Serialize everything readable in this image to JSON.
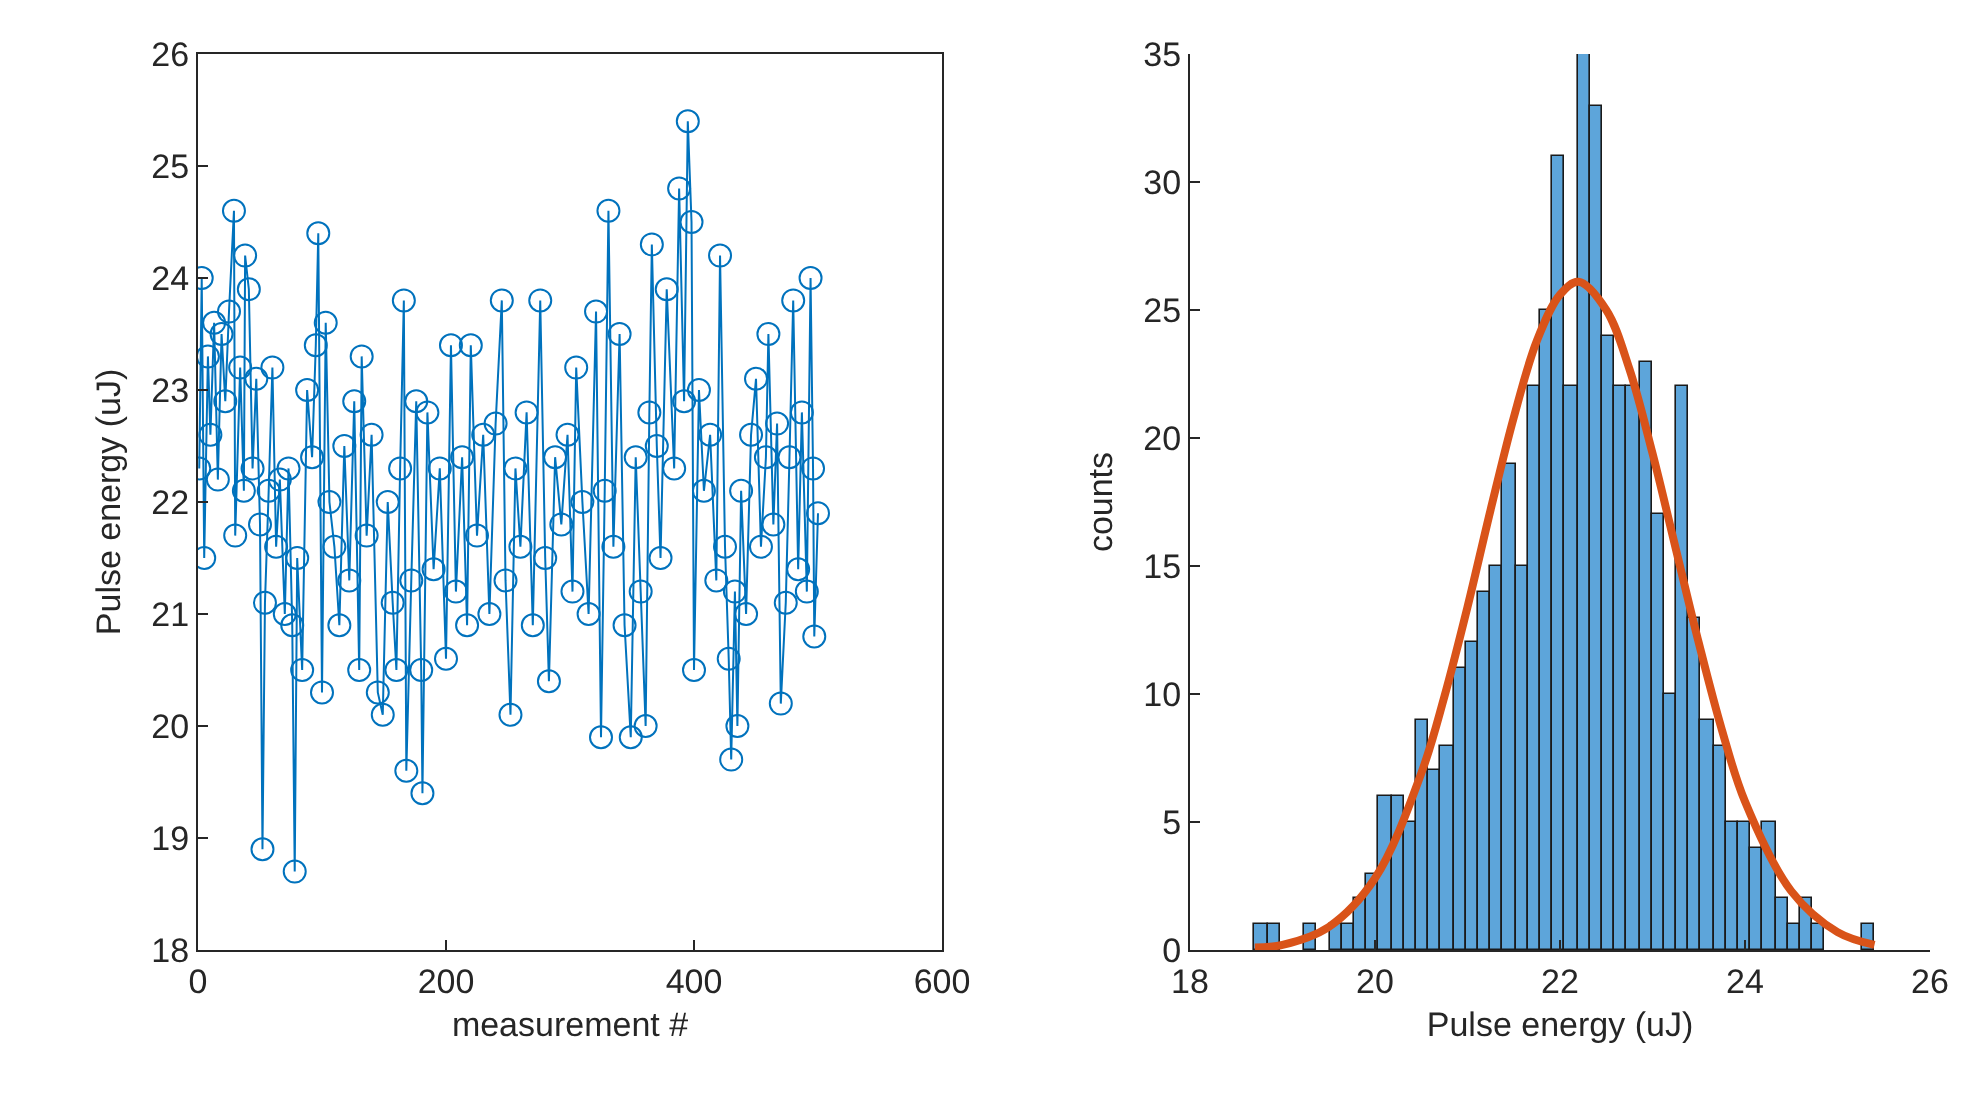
{
  "chart_data": [
    {
      "type": "line",
      "xlabel": "measurement #",
      "ylabel": "Pulse energy (uJ)",
      "xlim": [
        0,
        600
      ],
      "xticks": [
        0,
        200,
        400,
        600
      ],
      "ylim": [
        18,
        26
      ],
      "yticks": [
        18,
        19,
        20,
        21,
        22,
        23,
        24,
        25,
        26
      ],
      "marker": "circle",
      "line_style": "solid",
      "x": [
        1,
        3,
        5,
        8,
        10,
        13,
        16,
        19,
        22,
        25,
        29,
        30,
        34,
        37,
        38,
        41,
        44,
        47,
        50,
        52,
        54,
        57,
        60,
        63,
        66,
        70,
        73,
        76,
        78,
        80,
        84,
        88,
        92,
        95,
        97,
        100,
        103,
        106,
        110,
        114,
        118,
        122,
        126,
        130,
        132,
        136,
        140,
        145,
        149,
        153,
        157,
        160,
        163,
        166,
        168,
        172,
        176,
        180,
        181,
        185,
        190,
        195,
        200,
        204,
        208,
        213,
        217,
        220,
        225,
        230,
        235,
        240,
        245,
        248,
        252,
        256,
        260,
        265,
        270,
        276,
        280,
        283,
        288,
        293,
        298,
        302,
        305,
        310,
        315,
        321,
        325,
        328,
        331,
        335,
        340,
        344,
        349,
        353,
        357,
        361,
        364,
        366,
        370,
        373,
        378,
        384,
        388,
        392,
        395,
        398,
        400,
        404,
        408,
        413,
        418,
        421,
        425,
        428,
        430,
        433,
        435,
        438,
        442,
        446,
        450,
        454,
        458,
        460,
        464,
        467,
        470,
        474,
        477,
        480,
        484,
        487,
        491,
        494,
        496,
        497,
        500
      ],
      "series": [
        {
          "color": "#0072bd",
          "values": [
            22.3,
            24.0,
            21.5,
            23.3,
            22.6,
            23.6,
            22.2,
            23.5,
            22.9,
            23.7,
            24.6,
            21.7,
            23.2,
            22.1,
            24.2,
            23.9,
            22.3,
            23.1,
            21.8,
            18.9,
            21.1,
            22.1,
            23.2,
            21.6,
            22.2,
            21.0,
            22.3,
            20.9,
            18.7,
            21.5,
            20.5,
            23.0,
            22.4,
            23.4,
            24.4,
            20.3,
            23.6,
            22.0,
            21.6,
            20.9,
            22.5,
            21.3,
            22.9,
            20.5,
            23.3,
            21.7,
            22.6,
            20.3,
            20.1,
            22.0,
            21.1,
            20.5,
            22.3,
            23.8,
            19.6,
            21.3,
            22.9,
            20.5,
            19.4,
            22.8,
            21.4,
            22.3,
            20.6,
            23.4,
            21.2,
            22.4,
            20.9,
            23.4,
            21.7,
            22.6,
            21.0,
            22.7,
            23.8,
            21.3,
            20.1,
            22.3,
            21.6,
            22.8,
            20.9,
            23.8,
            21.5,
            20.4,
            22.4,
            21.8,
            22.6,
            21.2,
            23.2,
            22.0,
            21.0,
            23.7,
            19.9,
            22.1,
            24.6,
            21.6,
            23.5,
            20.9,
            19.9,
            22.4,
            21.2,
            20.0,
            22.8,
            24.3,
            22.5,
            21.5,
            23.9,
            22.3,
            24.8,
            22.9,
            25.4,
            24.5,
            20.5,
            23.0,
            22.1,
            22.6,
            21.3,
            24.2,
            21.6,
            20.6,
            19.7,
            21.2,
            20.0,
            22.1,
            21.0,
            22.6,
            23.1,
            21.6,
            22.4,
            23.5,
            21.8,
            22.7,
            20.2,
            21.1,
            22.4,
            23.8,
            21.4,
            22.8,
            21.2,
            24.0,
            22.3,
            20.8,
            21.9
          ]
        }
      ]
    },
    {
      "type": "histogram",
      "xlabel": "Pulse energy (uJ)",
      "ylabel": "counts",
      "xlim": [
        18,
        26
      ],
      "xticks": [
        18,
        20,
        22,
        24,
        26
      ],
      "ylim": [
        0,
        35
      ],
      "yticks": [
        0,
        5,
        10,
        15,
        20,
        25,
        30,
        35
      ],
      "bins": [
        18.7,
        18.834,
        18.968,
        19.102,
        19.236,
        19.37,
        19.504,
        19.638,
        19.772,
        19.906,
        20.04,
        20.174,
        20.308,
        20.442,
        20.576,
        20.71,
        20.844,
        20.978,
        21.112,
        21.246,
        21.38,
        21.514,
        21.648,
        21.782,
        21.916,
        22.05,
        22.184,
        22.318,
        22.452,
        22.586,
        22.72,
        22.854,
        22.988,
        23.122,
        23.256,
        23.39,
        23.524,
        23.658,
        23.792,
        23.926,
        24.06,
        24.194,
        24.328,
        24.462,
        24.596,
        24.73,
        24.864,
        24.998,
        25.132,
        25.266,
        25.4
      ],
      "series": [
        {
          "type": "histogram",
          "color": "#5da5da",
          "values": [
            1,
            1,
            0,
            0,
            1,
            0,
            1,
            1,
            2,
            3,
            6,
            6,
            5,
            9,
            7,
            8,
            11,
            12,
            14,
            15,
            19,
            15,
            22,
            25,
            31,
            22,
            35,
            33,
            24,
            22,
            22,
            23,
            17,
            10,
            22,
            13,
            9,
            8,
            5,
            5,
            4,
            5,
            2,
            1,
            2,
            1,
            0,
            0,
            0,
            1
          ]
        },
        {
          "type": "line",
          "color": "#d95319",
          "x": [
            18.7,
            19.0,
            19.5,
            20.0,
            20.5,
            20.75,
            21.0,
            21.25,
            21.5,
            21.75,
            22.0,
            22.2,
            22.5,
            22.75,
            23.0,
            23.25,
            23.5,
            23.75,
            24.0,
            24.5,
            25.0,
            25.4
          ],
          "values": [
            0.1,
            0.2,
            0.9,
            2.8,
            6.9,
            9.9,
            13.4,
            17.2,
            20.8,
            23.8,
            25.6,
            26.1,
            25.0,
            22.7,
            19.4,
            15.7,
            12.0,
            8.6,
            5.8,
            2.3,
            0.7,
            0.2
          ]
        }
      ]
    }
  ]
}
